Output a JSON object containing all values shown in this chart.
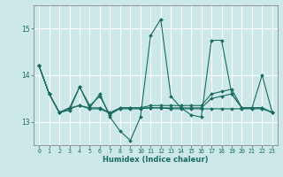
{
  "title": "",
  "xlabel": "Humidex (Indice chaleur)",
  "xlim": [
    -0.5,
    23.5
  ],
  "ylim": [
    12.5,
    15.5
  ],
  "yticks": [
    13,
    14,
    15
  ],
  "xticks": [
    0,
    1,
    2,
    3,
    4,
    5,
    6,
    7,
    8,
    9,
    10,
    11,
    12,
    13,
    14,
    15,
    16,
    17,
    18,
    19,
    20,
    21,
    22,
    23
  ],
  "background_color": "#cce8e8",
  "grid_color": "#ffffff",
  "line_color": "#1a6b60",
  "lines": [
    [
      14.2,
      13.6,
      13.2,
      13.25,
      13.75,
      13.3,
      13.6,
      13.1,
      12.8,
      12.6,
      13.1,
      14.85,
      15.2,
      13.55,
      13.3,
      13.15,
      13.1,
      14.75,
      14.75,
      13.6,
      13.3,
      13.3,
      14.0,
      13.2
    ],
    [
      14.2,
      13.6,
      13.2,
      13.3,
      13.75,
      13.35,
      13.55,
      13.15,
      13.3,
      13.3,
      13.3,
      13.35,
      13.35,
      13.35,
      13.35,
      13.35,
      13.35,
      13.6,
      13.65,
      13.7,
      13.3,
      13.3,
      13.3,
      13.2
    ],
    [
      14.2,
      13.6,
      13.2,
      13.28,
      13.35,
      13.28,
      13.28,
      13.18,
      13.28,
      13.28,
      13.28,
      13.3,
      13.3,
      13.28,
      13.28,
      13.28,
      13.28,
      13.28,
      13.28,
      13.28,
      13.28,
      13.28,
      13.28,
      13.2
    ],
    [
      14.2,
      13.6,
      13.2,
      13.3,
      13.35,
      13.3,
      13.3,
      13.2,
      13.3,
      13.3,
      13.3,
      13.3,
      13.3,
      13.3,
      13.3,
      13.3,
      13.3,
      13.5,
      13.55,
      13.6,
      13.3,
      13.3,
      13.3,
      13.2
    ]
  ]
}
